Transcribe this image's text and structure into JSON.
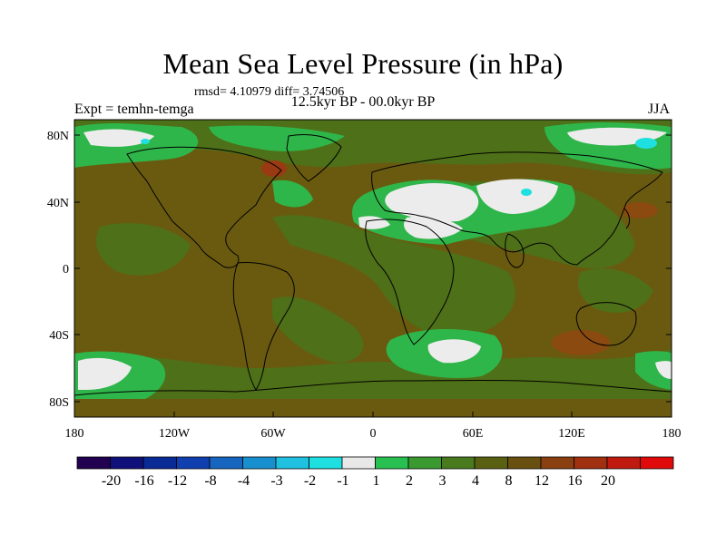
{
  "title": "Mean Sea Level Pressure (in hPa)",
  "stats": "rmsd= 4.10979  diff= 3.74506",
  "left_label": "Expt = temhn-temga",
  "center_label": "12.5kyr BP - 00.0kyr BP",
  "right_label": "JJA",
  "lat_ticks": [
    "80N",
    "40N",
    "0",
    "40S",
    "80S"
  ],
  "lon_ticks": [
    "180",
    "120W",
    "60W",
    "0",
    "60E",
    "120E",
    "180"
  ],
  "colorbar": {
    "colors": [
      "#220050",
      "#10107a",
      "#0a2a96",
      "#1040b0",
      "#1666c0",
      "#1890d0",
      "#20c0e0",
      "#1ee0e0",
      "#e8e8e8",
      "#28c050",
      "#3a9a30",
      "#4a7a1e",
      "#5a6012",
      "#6a5010",
      "#8a4010",
      "#a03010",
      "#c01a10",
      "#e00a0a"
    ],
    "labels": [
      "-20",
      "-16",
      "-12",
      "-8",
      "-4",
      "-3",
      "-2",
      "-1",
      "1",
      "2",
      "3",
      "4",
      "8",
      "12",
      "16",
      "20"
    ]
  },
  "colors": {
    "background": "#6a5a10",
    "olive": "#4e7018",
    "green": "#2fb64a",
    "white": "#ececec",
    "cyan": "#1ee0e0",
    "brown": "#8a4a10",
    "coast": "#000000"
  }
}
